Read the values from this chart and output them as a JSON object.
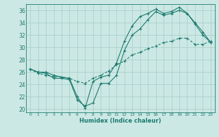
{
  "xlabel": "Humidex (Indice chaleur)",
  "ylabel": "",
  "bg_color": "#cce8e4",
  "grid_color": "#aad0cc",
  "line_color": "#1a7a6e",
  "xlim": [
    -0.5,
    23.5
  ],
  "ylim": [
    19.5,
    37.0
  ],
  "xticks": [
    0,
    1,
    2,
    3,
    4,
    5,
    6,
    7,
    8,
    9,
    10,
    11,
    12,
    13,
    14,
    15,
    16,
    17,
    18,
    19,
    20,
    21,
    22,
    23
  ],
  "yticks": [
    20,
    22,
    24,
    26,
    28,
    30,
    32,
    34,
    36
  ],
  "series1_x": [
    0,
    1,
    2,
    3,
    4,
    5,
    6,
    7,
    8,
    9,
    10,
    11,
    12,
    13,
    14,
    15,
    16,
    17,
    18,
    19,
    20,
    21,
    22,
    23
  ],
  "series1_y": [
    26.5,
    26.0,
    26.0,
    25.5,
    25.2,
    25.0,
    22.0,
    20.2,
    24.5,
    25.2,
    25.5,
    27.5,
    31.0,
    33.5,
    35.0,
    35.5,
    36.2,
    35.5,
    35.8,
    36.5,
    35.5,
    33.8,
    32.0,
    30.8
  ],
  "series2_x": [
    0,
    1,
    2,
    3,
    4,
    5,
    6,
    7,
    8,
    9,
    10,
    11,
    12,
    13,
    14,
    15,
    16,
    17,
    18,
    19,
    20,
    21,
    22,
    23
  ],
  "series2_y": [
    26.5,
    26.0,
    25.8,
    25.0,
    25.0,
    24.8,
    21.5,
    20.5,
    21.0,
    24.2,
    24.2,
    25.5,
    29.5,
    32.0,
    33.0,
    34.5,
    35.8,
    35.2,
    35.5,
    36.0,
    35.5,
    34.0,
    32.5,
    30.8
  ],
  "series3_x": [
    0,
    1,
    2,
    3,
    4,
    5,
    6,
    7,
    8,
    9,
    10,
    11,
    12,
    13,
    14,
    15,
    16,
    17,
    18,
    19,
    20,
    21,
    22,
    23
  ],
  "series3_y": [
    26.5,
    25.8,
    25.5,
    25.3,
    25.2,
    25.0,
    24.5,
    24.2,
    25.0,
    25.5,
    26.2,
    27.2,
    27.8,
    28.8,
    29.2,
    29.8,
    30.2,
    30.8,
    31.0,
    31.5,
    31.5,
    30.5,
    30.5,
    31.0
  ]
}
